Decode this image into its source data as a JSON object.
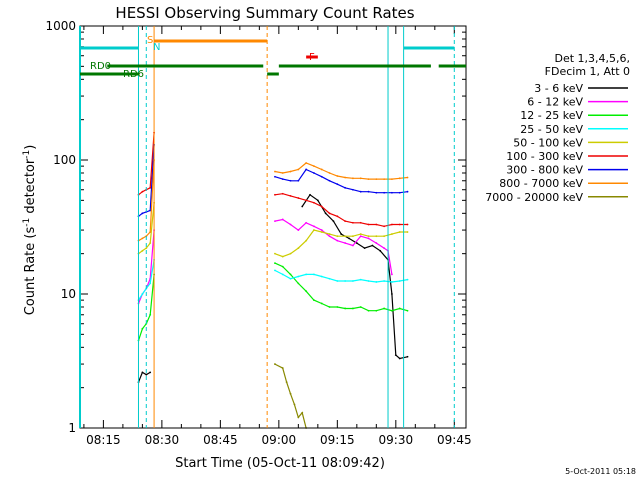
{
  "chart_data": {
    "type": "line",
    "title": "HESSI Observing Summary Count Rates",
    "xlabel": "Start Time (05-Oct-11 08:09:42)",
    "ylabel_main": "Count Rate (s",
    "ylabel_sup1": "-1",
    "ylabel_mid": " detector",
    "ylabel_sup2": "-1",
    "ylabel_end": ")",
    "x_scale": "time",
    "x_range": [
      "08:09",
      "09:48"
    ],
    "x_ticks": [
      "08:15",
      "08:30",
      "08:45",
      "09:00",
      "09:15",
      "09:30",
      "09:45"
    ],
    "y_scale": "log",
    "y_range": [
      1,
      1000
    ],
    "y_ticks": [
      "1",
      "10",
      "100",
      "1000"
    ],
    "grid": false,
    "legend_title": [
      "Det 1,3,4,5,6,",
      "FDecim 1, Att 0"
    ],
    "legend_placement": "right",
    "series": [
      {
        "name": "3 - 6 keV",
        "color": "#000000",
        "points": [
          [
            "08:09",
            null
          ],
          [
            "08:24",
            null
          ],
          [
            "08:24",
            2.2
          ],
          [
            "08:25",
            2.6
          ],
          [
            "08:26",
            2.5
          ],
          [
            "08:27",
            2.6
          ],
          [
            "08:27",
            null
          ],
          [
            "08:58",
            null
          ],
          [
            "09:05",
            null
          ],
          [
            "09:06",
            45
          ],
          [
            "09:08",
            55
          ],
          [
            "09:10",
            50
          ],
          [
            "09:12",
            40
          ],
          [
            "09:14",
            35
          ],
          [
            "09:16",
            28
          ],
          [
            "09:18",
            26
          ],
          [
            "09:20",
            24
          ],
          [
            "09:22",
            22
          ],
          [
            "09:24",
            23
          ],
          [
            "09:26",
            21
          ],
          [
            "09:28",
            18
          ],
          [
            "09:29",
            10
          ],
          [
            "09:30",
            3.5
          ],
          [
            "09:31",
            3.3
          ],
          [
            "09:33",
            3.4
          ],
          [
            "09:33",
            null
          ]
        ]
      },
      {
        "name": "6 - 12 keV",
        "color": "#ff00ff",
        "points": [
          [
            "08:24",
            8.5
          ],
          [
            "08:25",
            10
          ],
          [
            "08:26",
            11
          ],
          [
            "08:27",
            13
          ],
          [
            "08:28",
            30
          ],
          [
            "08:28",
            null
          ],
          [
            "08:59",
            35
          ],
          [
            "09:01",
            36
          ],
          [
            "09:03",
            33
          ],
          [
            "09:05",
            30
          ],
          [
            "09:07",
            34
          ],
          [
            "09:09",
            32
          ],
          [
            "09:11",
            30
          ],
          [
            "09:13",
            27
          ],
          [
            "09:15",
            25
          ],
          [
            "09:17",
            24
          ],
          [
            "09:19",
            23
          ],
          [
            "09:21",
            27
          ],
          [
            "09:23",
            26
          ],
          [
            "09:25",
            24
          ],
          [
            "09:27",
            22
          ],
          [
            "09:28",
            21
          ],
          [
            "09:29",
            14
          ]
        ]
      },
      {
        "name": "12 - 25 keV",
        "color": "#00ee00",
        "points": [
          [
            "08:24",
            4.5
          ],
          [
            "08:25",
            5.5
          ],
          [
            "08:26",
            6
          ],
          [
            "08:27",
            7
          ],
          [
            "08:28",
            14
          ],
          [
            "08:28",
            null
          ],
          [
            "08:59",
            17
          ],
          [
            "09:01",
            16
          ],
          [
            "09:03",
            14
          ],
          [
            "09:05",
            12
          ],
          [
            "09:07",
            10.5
          ],
          [
            "09:09",
            9
          ],
          [
            "09:11",
            8.5
          ],
          [
            "09:13",
            8
          ],
          [
            "09:15",
            8
          ],
          [
            "09:17",
            7.8
          ],
          [
            "09:19",
            7.8
          ],
          [
            "09:21",
            8
          ],
          [
            "09:23",
            7.5
          ],
          [
            "09:25",
            7.5
          ],
          [
            "09:27",
            7.8
          ],
          [
            "09:29",
            7.5
          ],
          [
            "09:31",
            7.8
          ],
          [
            "09:33",
            7.5
          ]
        ]
      },
      {
        "name": "25 - 50 keV",
        "color": "#00ffff",
        "points": [
          [
            "08:24",
            9
          ],
          [
            "08:25",
            10
          ],
          [
            "08:26",
            11
          ],
          [
            "08:27",
            12
          ],
          [
            "08:28",
            18
          ],
          [
            "08:28",
            null
          ],
          [
            "08:59",
            15
          ],
          [
            "09:01",
            14
          ],
          [
            "09:03",
            13
          ],
          [
            "09:05",
            13.5
          ],
          [
            "09:07",
            14
          ],
          [
            "09:09",
            14
          ],
          [
            "09:11",
            13.5
          ],
          [
            "09:13",
            13
          ],
          [
            "09:15",
            12.5
          ],
          [
            "09:17",
            12.5
          ],
          [
            "09:19",
            12.5
          ],
          [
            "09:21",
            12.8
          ],
          [
            "09:23",
            12.5
          ],
          [
            "09:25",
            12.3
          ],
          [
            "09:27",
            12.5
          ],
          [
            "09:29",
            12.3
          ],
          [
            "09:31",
            12.5
          ],
          [
            "09:33",
            12.8
          ]
        ]
      },
      {
        "name": "50 - 100 keV",
        "color": "#cccc00",
        "points": [
          [
            "08:24",
            20
          ],
          [
            "08:25",
            21
          ],
          [
            "08:26",
            22
          ],
          [
            "08:27",
            24
          ],
          [
            "08:28",
            48
          ],
          [
            "08:28",
            null
          ],
          [
            "08:59",
            20
          ],
          [
            "09:01",
            19
          ],
          [
            "09:03",
            20
          ],
          [
            "09:05",
            22
          ],
          [
            "09:07",
            25
          ],
          [
            "09:09",
            30
          ],
          [
            "09:11",
            29
          ],
          [
            "09:13",
            28
          ],
          [
            "09:15",
            27
          ],
          [
            "09:17",
            27
          ],
          [
            "09:19",
            27
          ],
          [
            "09:21",
            28
          ],
          [
            "09:23",
            27
          ],
          [
            "09:25",
            27
          ],
          [
            "09:27",
            27
          ],
          [
            "09:29",
            28
          ],
          [
            "09:31",
            29
          ],
          [
            "09:33",
            29
          ]
        ]
      },
      {
        "name": "100 - 300 keV",
        "color": "#ee0000",
        "points": [
          [
            "08:24",
            55
          ],
          [
            "08:25",
            58
          ],
          [
            "08:26",
            60
          ],
          [
            "08:27",
            62
          ],
          [
            "08:28",
            160
          ],
          [
            "08:28",
            null
          ],
          [
            "08:59",
            55
          ],
          [
            "09:01",
            56
          ],
          [
            "09:03",
            54
          ],
          [
            "09:05",
            52
          ],
          [
            "09:07",
            50
          ],
          [
            "09:09",
            48
          ],
          [
            "09:11",
            45
          ],
          [
            "09:13",
            40
          ],
          [
            "09:15",
            38
          ],
          [
            "09:17",
            35
          ],
          [
            "09:19",
            34
          ],
          [
            "09:21",
            34
          ],
          [
            "09:23",
            33
          ],
          [
            "09:25",
            33
          ],
          [
            "09:27",
            32
          ],
          [
            "09:29",
            33
          ],
          [
            "09:31",
            33
          ],
          [
            "09:33",
            33
          ]
        ]
      },
      {
        "name": "300 - 800 keV",
        "color": "#0000ee",
        "points": [
          [
            "08:24",
            38
          ],
          [
            "08:25",
            40
          ],
          [
            "08:26",
            41
          ],
          [
            "08:27",
            42
          ],
          [
            "08:28",
            130
          ],
          [
            "08:28",
            null
          ],
          [
            "08:59",
            75
          ],
          [
            "09:01",
            72
          ],
          [
            "09:03",
            70
          ],
          [
            "09:05",
            70
          ],
          [
            "09:07",
            85
          ],
          [
            "09:09",
            80
          ],
          [
            "09:11",
            75
          ],
          [
            "09:13",
            70
          ],
          [
            "09:15",
            66
          ],
          [
            "09:17",
            62
          ],
          [
            "09:19",
            60
          ],
          [
            "09:21",
            58
          ],
          [
            "09:23",
            58
          ],
          [
            "09:25",
            57
          ],
          [
            "09:27",
            57
          ],
          [
            "09:29",
            57
          ],
          [
            "09:31",
            57
          ],
          [
            "09:33",
            58
          ]
        ]
      },
      {
        "name": "800 - 7000 keV",
        "color": "#ff8800",
        "points": [
          [
            "08:24",
            25
          ],
          [
            "08:25",
            26
          ],
          [
            "08:26",
            27
          ],
          [
            "08:27",
            29
          ],
          [
            "08:28",
            100
          ],
          [
            "08:28",
            null
          ],
          [
            "08:59",
            82
          ],
          [
            "09:01",
            80
          ],
          [
            "09:03",
            82
          ],
          [
            "09:05",
            85
          ],
          [
            "09:07",
            95
          ],
          [
            "09:09",
            90
          ],
          [
            "09:11",
            85
          ],
          [
            "09:13",
            80
          ],
          [
            "09:15",
            76
          ],
          [
            "09:17",
            74
          ],
          [
            "09:19",
            73
          ],
          [
            "09:21",
            73
          ],
          [
            "09:23",
            72
          ],
          [
            "09:25",
            72
          ],
          [
            "09:27",
            72
          ],
          [
            "09:29",
            72
          ],
          [
            "09:31",
            73
          ],
          [
            "09:33",
            74
          ]
        ]
      },
      {
        "name": "7000 - 20000 keV",
        "color": "#888800",
        "points": [
          [
            "08:59",
            3
          ],
          [
            "09:01",
            2.8
          ],
          [
            "09:02",
            2.2
          ],
          [
            "09:03",
            1.8
          ],
          [
            "09:04",
            1.5
          ],
          [
            "09:05",
            1.2
          ],
          [
            "09:06",
            1.3
          ],
          [
            "09:07",
            1.0
          ]
        ]
      }
    ],
    "annotations": {
      "flag_rows": [
        {
          "label": "S",
          "color": "#ff8800"
        },
        {
          "label": "N",
          "color": "#00cccc"
        },
        {
          "label": "F",
          "color": "#ee0000"
        },
        {
          "label": "RD0",
          "color": "#007700"
        },
        {
          "label": "RD6",
          "color": "#007700"
        }
      ],
      "flag_intervals": {
        "saa_top": [
          [
            "08:09",
            "08:24"
          ],
          [
            "09:32",
            "09:45"
          ]
        ],
        "orange_top": [
          [
            "08:28",
            "08:57"
          ]
        ],
        "red_F": [
          [
            "09:07",
            "09:10"
          ]
        ],
        "rd0": [
          [
            "08:16",
            "08:56"
          ],
          [
            "09:00",
            "09:39"
          ],
          [
            "09:41",
            "09:48"
          ]
        ],
        "rd6": [
          [
            "08:09",
            "08:24"
          ],
          [
            "08:57",
            "09:00"
          ]
        ]
      }
    },
    "footer_timestamp": "5-Oct-2011 05:18"
  }
}
